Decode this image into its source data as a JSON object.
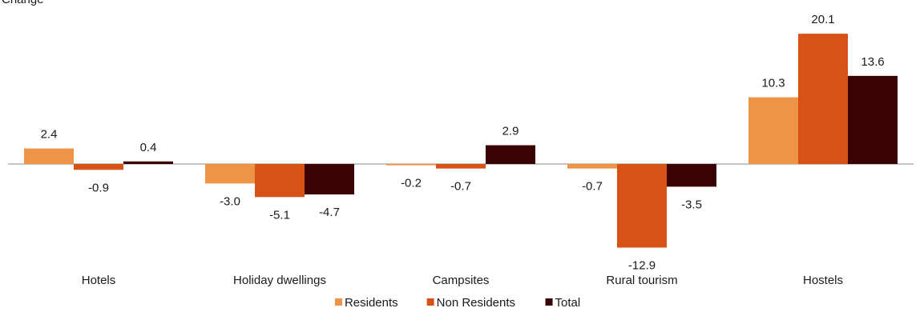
{
  "cropped_top_text": "Change",
  "chart_data": {
    "type": "bar",
    "categories": [
      "Hotels",
      "Holiday dwellings",
      "Campsites",
      "Rural tourism",
      "Hostels"
    ],
    "series": [
      {
        "name": "Residents",
        "color": "#ED9446",
        "values": [
          2.4,
          -3.0,
          -0.2,
          -0.7,
          10.3
        ]
      },
      {
        "name": "Non Residents",
        "color": "#D85216",
        "values": [
          -0.9,
          -5.1,
          -0.7,
          -12.9,
          20.1
        ]
      },
      {
        "name": "Total",
        "color": "#3B0204",
        "values": [
          0.4,
          -4.7,
          2.9,
          -3.5,
          13.6
        ]
      }
    ],
    "value_labels": [
      [
        "2.4",
        "-3.0",
        "-0.2",
        "-0.7",
        "10.3"
      ],
      [
        "-0.9",
        "-5.1",
        "-0.7",
        "-12.9",
        "20.1"
      ],
      [
        "0.4",
        "-4.7",
        "2.9",
        "-3.5",
        "13.6"
      ]
    ],
    "legend": {
      "position": "bottom-center",
      "entries": [
        "Residents",
        "Non Residents",
        "Total"
      ]
    },
    "grid": false,
    "title": "",
    "xlabel": "",
    "ylabel": ""
  }
}
